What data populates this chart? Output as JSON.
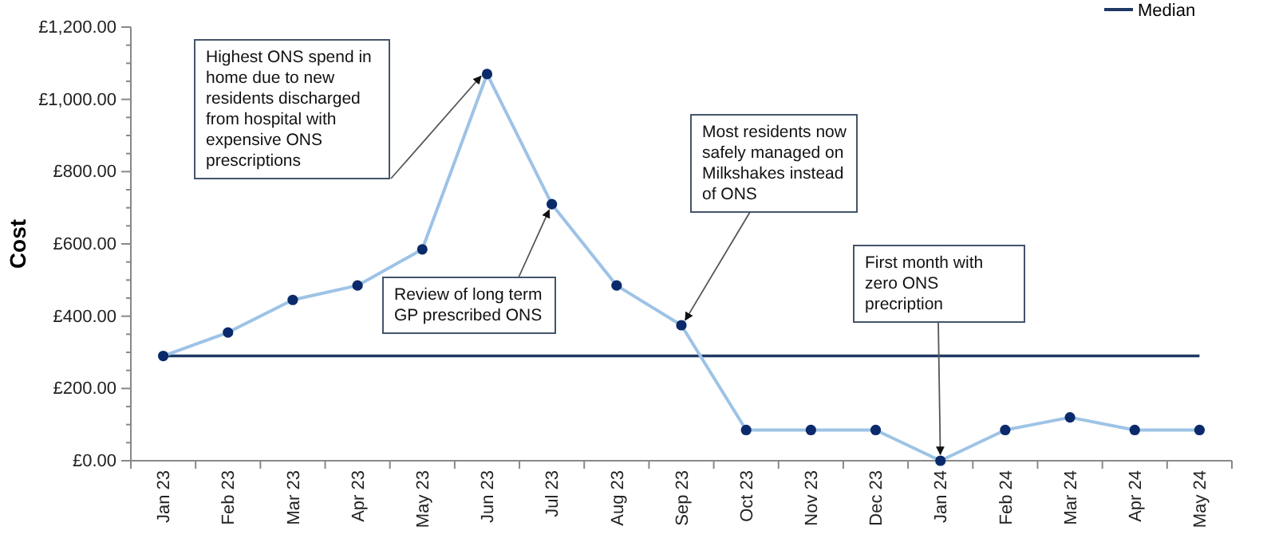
{
  "chart_data": {
    "type": "line",
    "ylabel": "Cost",
    "categories": [
      "Jan 23",
      "Feb 23",
      "Mar 23",
      "Apr 23",
      "May 23",
      "Jun 23",
      "Jul 23",
      "Aug 23",
      "Sep 23",
      "Oct 23",
      "Nov 23",
      "Dec 23",
      "Jan 24",
      "Feb 24",
      "Mar 24",
      "Apr 24",
      "May 24"
    ],
    "series": [
      {
        "color": "#9dc3e6",
        "marker": "circle",
        "values": [
          290,
          355,
          445,
          485,
          585,
          1070,
          710,
          485,
          375,
          85,
          85,
          85,
          0,
          85,
          120,
          85,
          85
        ]
      },
      {
        "name": "Median",
        "color": "#1f3864",
        "marker": "none",
        "values": [
          290,
          290,
          290,
          290,
          290,
          290,
          290,
          290,
          290,
          290,
          290,
          290,
          290,
          290,
          290,
          290,
          290
        ]
      }
    ],
    "ylim": [
      0,
      1200
    ],
    "yticks": [
      {
        "value": 0,
        "label": "£0.00"
      },
      {
        "value": 50,
        "label": null
      },
      {
        "value": 100,
        "label": null
      },
      {
        "value": 150,
        "label": null
      },
      {
        "value": 200,
        "label": "£200.00"
      },
      {
        "value": 250,
        "label": null
      },
      {
        "value": 300,
        "label": null
      },
      {
        "value": 350,
        "label": null
      },
      {
        "value": 400,
        "label": "£400.00"
      },
      {
        "value": 450,
        "label": null
      },
      {
        "value": 500,
        "label": null
      },
      {
        "value": 550,
        "label": null
      },
      {
        "value": 600,
        "label": "£600.00"
      },
      {
        "value": 650,
        "label": null
      },
      {
        "value": 700,
        "label": null
      },
      {
        "value": 750,
        "label": null
      },
      {
        "value": 800,
        "label": "£800.00"
      },
      {
        "value": 850,
        "label": null
      },
      {
        "value": 900,
        "label": null
      },
      {
        "value": 950,
        "label": null
      },
      {
        "value": 1000,
        "label": "£1,000.00"
      },
      {
        "value": 1050,
        "label": null
      },
      {
        "value": 1100,
        "label": null
      },
      {
        "value": 1150,
        "label": null
      },
      {
        "value": 1200,
        "label": "£1,200.00"
      }
    ],
    "grid": false,
    "legend": "top right",
    "annotations": [
      {
        "text": "Highest ONS spend in home due to new residents discharged from hospital with expensive ONS prescriptions",
        "x": "Jun 23",
        "y": 1070
      },
      {
        "text": "Review of long term GP prescribed ONS",
        "x": "Jul 23",
        "y": 710
      },
      {
        "text": "Most residents now safely managed on Milkshakes instead of ONS",
        "x": "Sep 23",
        "y": 375
      },
      {
        "text": "First month with zero ONS precription",
        "x": "Jan 24",
        "y": 0
      }
    ]
  }
}
